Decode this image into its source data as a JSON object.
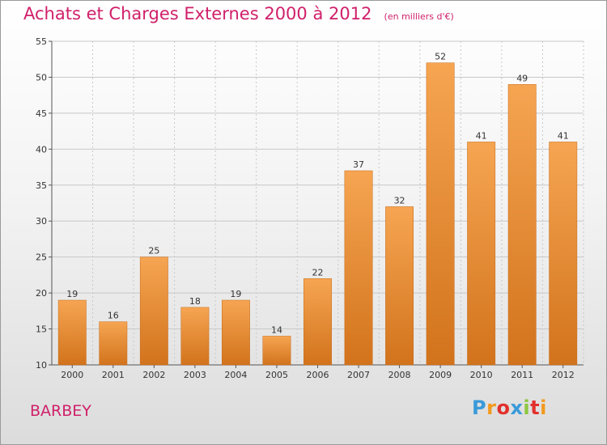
{
  "header": {
    "title": "Achats et Charges Externes 2000 à 2012",
    "subtitle": "(en milliers d'€)"
  },
  "footer": {
    "commune": "BARBEY",
    "logo_text": "Proxiti"
  },
  "colors": {
    "title": "#d0206a",
    "bar_top": "#f6a552",
    "bar_bottom": "#d2731c",
    "grid": "#c8c8c8",
    "logo_letters": [
      "#3a9ad9",
      "#f29a1d",
      "#e2312d",
      "#3a9ad9",
      "#8dc63f",
      "#e2312d",
      "#f29a1d"
    ]
  },
  "chart_data": {
    "type": "bar",
    "title": "Achats et Charges Externes 2000 à 2012",
    "subtitle": "(en milliers d'€)",
    "xlabel": "",
    "ylabel": "",
    "categories": [
      "2000",
      "2001",
      "2002",
      "2003",
      "2004",
      "2005",
      "2006",
      "2007",
      "2008",
      "2009",
      "2010",
      "2011",
      "2012"
    ],
    "values": [
      19,
      16,
      25,
      18,
      19,
      14,
      22,
      37,
      32,
      52,
      41,
      49,
      41
    ],
    "ylim": [
      10,
      55
    ],
    "yticks": [
      10,
      15,
      20,
      25,
      30,
      35,
      40,
      45,
      50,
      55
    ],
    "grid": true,
    "data_labels": true
  }
}
